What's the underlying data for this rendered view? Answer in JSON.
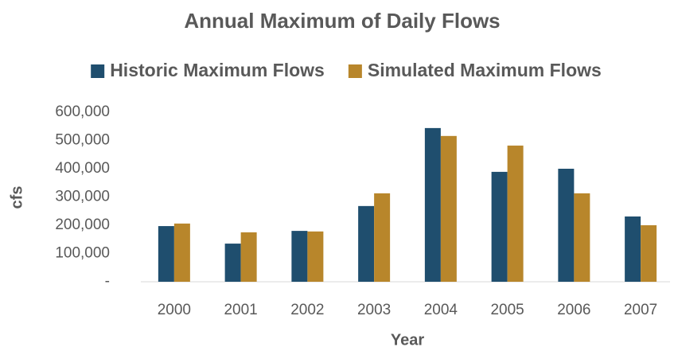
{
  "chart_data": {
    "type": "bar",
    "title": "Annual Maximum of Daily Flows",
    "x_label": "Year",
    "y_label": "cfs",
    "categories": [
      "2000",
      "2001",
      "2002",
      "2003",
      "2004",
      "2005",
      "2006",
      "2007"
    ],
    "series": [
      {
        "name": "Historic Maximum Flows",
        "color": "#1f4e6e",
        "values": [
          197000,
          135000,
          180000,
          268000,
          544000,
          389000,
          400000,
          231000
        ]
      },
      {
        "name": "Simulated Maximum Flows",
        "color": "#b8862b",
        "values": [
          206000,
          175000,
          178000,
          313000,
          516000,
          482000,
          313000,
          200000
        ]
      }
    ],
    "ylim": [
      0,
      600000
    ],
    "yticks": [
      {
        "value": 0,
        "label": "-"
      },
      {
        "value": 100000,
        "label": "100,000"
      },
      {
        "value": 200000,
        "label": "200,000"
      },
      {
        "value": 300000,
        "label": "300,000"
      },
      {
        "value": 400000,
        "label": "400,000"
      },
      {
        "value": 500000,
        "label": "500,000"
      },
      {
        "value": 600000,
        "label": "600,000"
      }
    ],
    "grid": false,
    "legend": "top"
  }
}
